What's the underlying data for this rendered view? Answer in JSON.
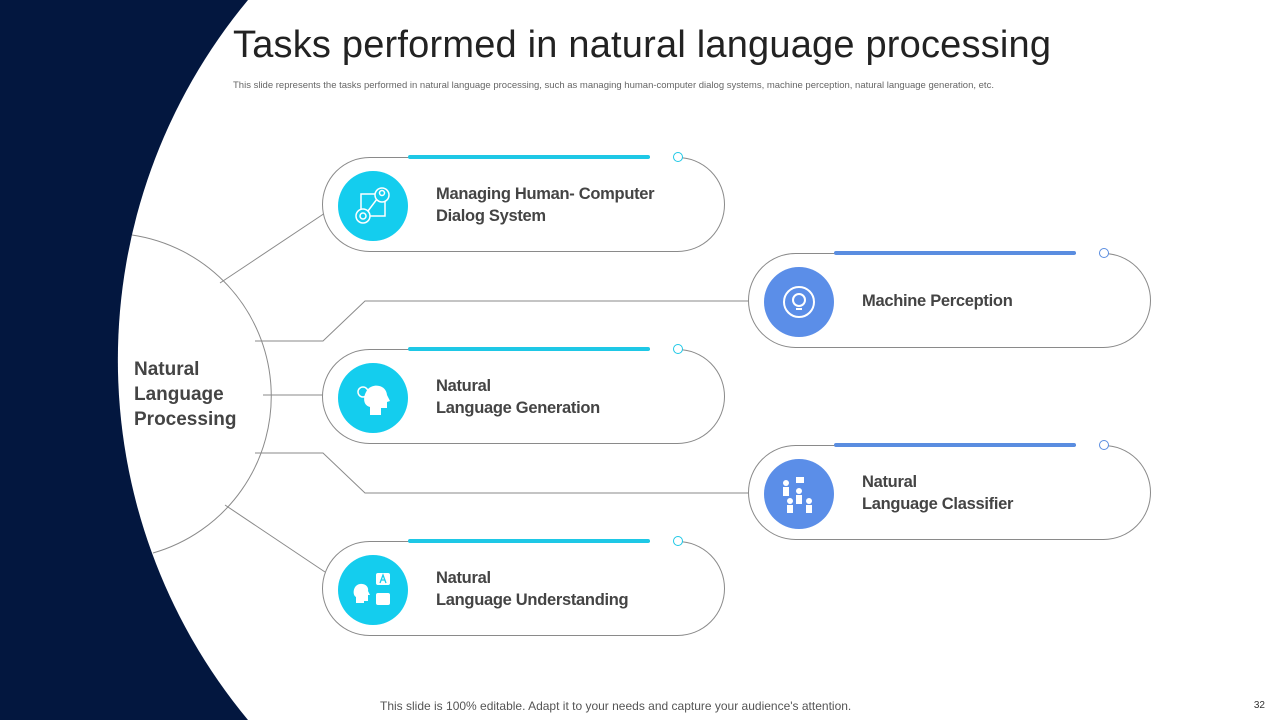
{
  "title": "Tasks performed in natural language processing",
  "subtitle": "This slide represents the tasks performed in natural language processing, such as managing human-computer dialog systems, machine perception, natural language generation, etc.",
  "center": {
    "line1": "Natural",
    "line2": "Language",
    "line3": "Processing"
  },
  "colors": {
    "navy": "#03173f",
    "cyan": "#14cdee",
    "blue": "#5b8ee8",
    "accent_cyan": "#1ec8e6",
    "accent_blue": "#5a8de0"
  },
  "tasks": [
    {
      "line1": "Managing Human- Computer",
      "line2": "Dialog System",
      "icon": "network-user-gear-icon",
      "color": "cyan"
    },
    {
      "line1": "Machine Perception",
      "line2": "",
      "icon": "lightbulb-cycle-icon",
      "color": "blue"
    },
    {
      "line1": "Natural",
      "line2": "Language Generation",
      "icon": "head-lightbulb-icon",
      "color": "cyan"
    },
    {
      "line1": "Natural",
      "line2": "Language Classifier",
      "icon": "people-sorting-icon",
      "color": "blue"
    },
    {
      "line1": "Natural",
      "line2": "Language Understanding",
      "icon": "speaking-translate-icon",
      "color": "cyan"
    }
  ],
  "footer": "This slide is 100% editable. Adapt it to your needs and capture your audience's attention.",
  "page_number": "32"
}
